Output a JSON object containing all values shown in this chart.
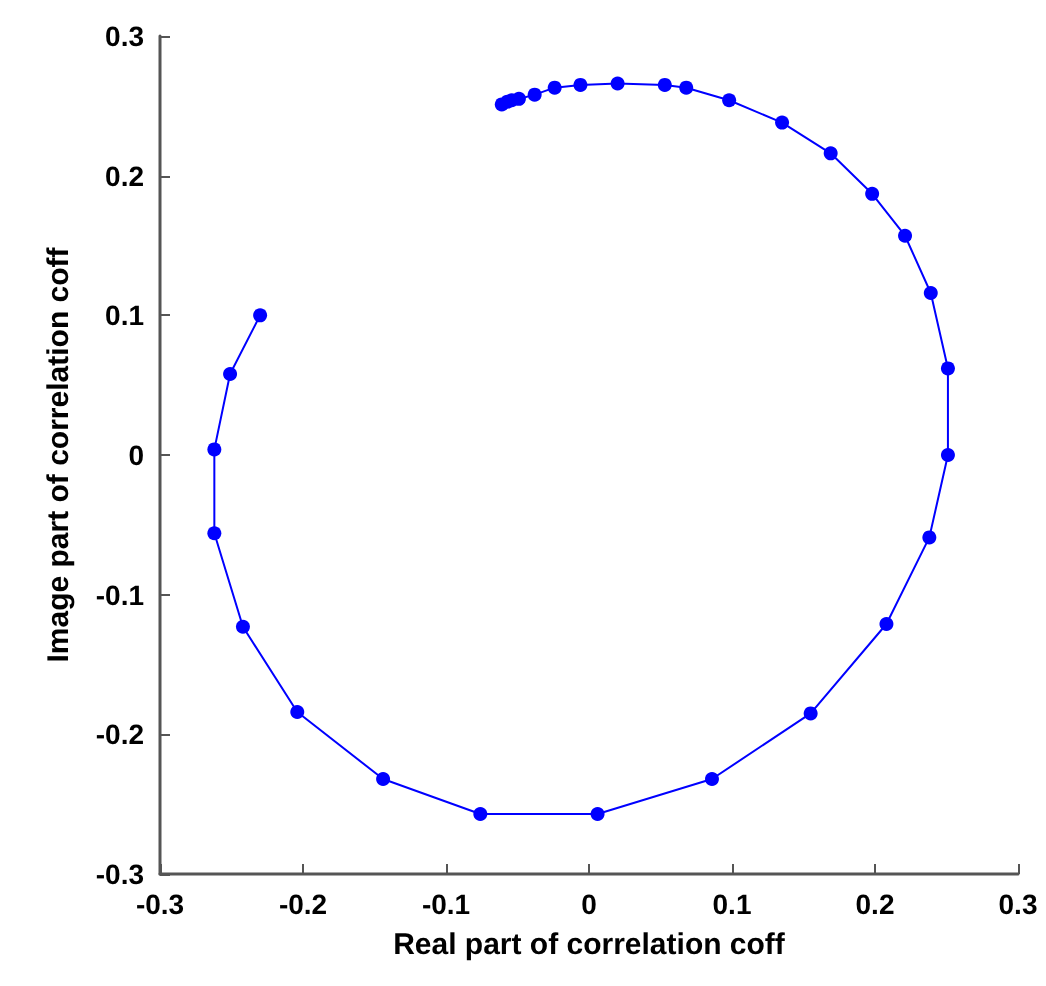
{
  "chart_data": {
    "type": "line",
    "xlabel": "Real part of correlation coff",
    "ylabel": "Image part of correlation coff",
    "x": [
      -0.23,
      -0.251,
      -0.262,
      -0.262,
      -0.242,
      -0.204,
      -0.144,
      -0.076,
      0.006,
      0.086,
      0.155,
      0.208,
      0.238,
      0.251,
      0.251,
      0.239,
      0.221,
      0.198,
      0.169,
      0.135,
      0.098,
      0.068,
      0.053,
      0.02,
      -0.006,
      -0.024,
      -0.038,
      -0.049,
      -0.054,
      -0.057,
      -0.061
    ],
    "series": [
      {
        "color": "#0000ff",
        "values": [
          0.1,
          0.058,
          0.004,
          -0.056,
          -0.123,
          -0.184,
          -0.232,
          -0.257,
          -0.257,
          -0.232,
          -0.185,
          -0.121,
          -0.059,
          0.0,
          0.062,
          0.116,
          0.157,
          0.187,
          0.216,
          0.238,
          0.254,
          0.263,
          0.265,
          0.266,
          0.265,
          0.263,
          0.258,
          0.255,
          0.254,
          0.253,
          0.251
        ]
      }
    ],
    "xlim": [
      -0.3,
      0.3
    ],
    "xticks": [
      -0.3,
      -0.2,
      -0.1,
      0,
      0.1,
      0.2,
      0.3
    ],
    "ylim": [
      -0.3,
      0.3
    ],
    "yticks": [
      -0.3,
      -0.2,
      -0.1,
      0,
      0.1,
      0.2,
      0.3
    ],
    "marker": "circle",
    "line_style": "solid"
  }
}
